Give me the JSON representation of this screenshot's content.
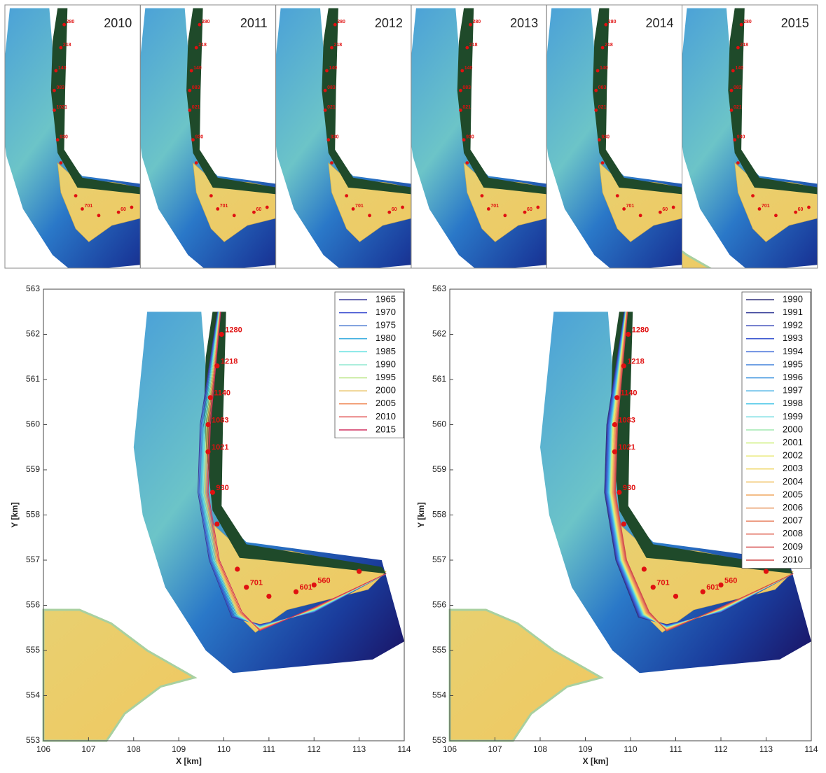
{
  "top_panels": [
    {
      "year": "2010",
      "point_labels": [
        "280",
        "218",
        "140",
        "083",
        "1021",
        "930",
        "701",
        "60"
      ]
    },
    {
      "year": "2011",
      "point_labels": [
        "280",
        "218",
        "140",
        "083",
        "021",
        "930",
        "701",
        "60"
      ]
    },
    {
      "year": "2012",
      "point_labels": [
        "280",
        "218",
        "140",
        "083",
        "021",
        "930",
        "701",
        "60"
      ]
    },
    {
      "year": "2013",
      "point_labels": [
        "280",
        "218",
        "140",
        "083",
        "021",
        "930",
        "701",
        "60"
      ]
    },
    {
      "year": "2014",
      "point_labels": [
        "280",
        "218",
        "140",
        "083",
        "021",
        "930",
        "701",
        "60"
      ]
    },
    {
      "year": "2015",
      "point_labels": [
        "280",
        "218",
        "140",
        "083",
        "021",
        "930",
        "701",
        "60"
      ]
    }
  ],
  "bottom_panels": [
    {
      "x_label": "X [km]",
      "y_label": "Y [km]",
      "xlim": [
        106,
        114
      ],
      "ylim": [
        553,
        563
      ],
      "xticks": [
        106,
        107,
        108,
        109,
        110,
        111,
        112,
        113,
        114
      ],
      "yticks": [
        553,
        554,
        555,
        556,
        557,
        558,
        559,
        560,
        561,
        562,
        563
      ],
      "point_labels": [
        "1280",
        "1218",
        "1140",
        "1083",
        "1021",
        "930",
        "701",
        "601",
        "560"
      ],
      "legend": [
        {
          "name": "1965",
          "color": "#3a3a9a"
        },
        {
          "name": "1970",
          "color": "#3c4fd0"
        },
        {
          "name": "1975",
          "color": "#4a7ad0"
        },
        {
          "name": "1980",
          "color": "#40b0e0"
        },
        {
          "name": "1985",
          "color": "#60e0e0"
        },
        {
          "name": "1990",
          "color": "#90e8d0"
        },
        {
          "name": "1995",
          "color": "#c0e890"
        },
        {
          "name": "2000",
          "color": "#e8c060"
        },
        {
          "name": "2005",
          "color": "#f09060"
        },
        {
          "name": "2010",
          "color": "#e05050"
        },
        {
          "name": "2015",
          "color": "#d03060"
        }
      ]
    },
    {
      "x_label": "X [km]",
      "y_label": "Y [km]",
      "xlim": [
        106,
        114
      ],
      "ylim": [
        553,
        563
      ],
      "xticks": [
        106,
        107,
        108,
        109,
        110,
        111,
        112,
        113,
        114
      ],
      "yticks": [
        553,
        554,
        555,
        556,
        557,
        558,
        559,
        560,
        561,
        562,
        563
      ],
      "point_labels": [
        "1280",
        "1218",
        "1140",
        "1083",
        "1021",
        "930",
        "701",
        "601",
        "560"
      ],
      "legend": [
        {
          "name": "1990",
          "color": "#30307a"
        },
        {
          "name": "1991",
          "color": "#343c98"
        },
        {
          "name": "1992",
          "color": "#3848b8"
        },
        {
          "name": "1993",
          "color": "#3c58d0"
        },
        {
          "name": "1994",
          "color": "#3f6cd8"
        },
        {
          "name": "1995",
          "color": "#4282dc"
        },
        {
          "name": "1996",
          "color": "#4498e0"
        },
        {
          "name": "1997",
          "color": "#46b0e4"
        },
        {
          "name": "1998",
          "color": "#50c8e8"
        },
        {
          "name": "1999",
          "color": "#70dce0"
        },
        {
          "name": "2000",
          "color": "#a0e8b0"
        },
        {
          "name": "2001",
          "color": "#d0f080"
        },
        {
          "name": "2002",
          "color": "#e8e870"
        },
        {
          "name": "2003",
          "color": "#f0d870"
        },
        {
          "name": "2004",
          "color": "#f0c060"
        },
        {
          "name": "2005",
          "color": "#f0a860"
        },
        {
          "name": "2006",
          "color": "#e89860"
        },
        {
          "name": "2007",
          "color": "#e88060"
        },
        {
          "name": "2008",
          "color": "#e06858"
        },
        {
          "name": "2009",
          "color": "#d85858"
        },
        {
          "name": "2010",
          "color": "#d04848"
        }
      ]
    }
  ]
}
